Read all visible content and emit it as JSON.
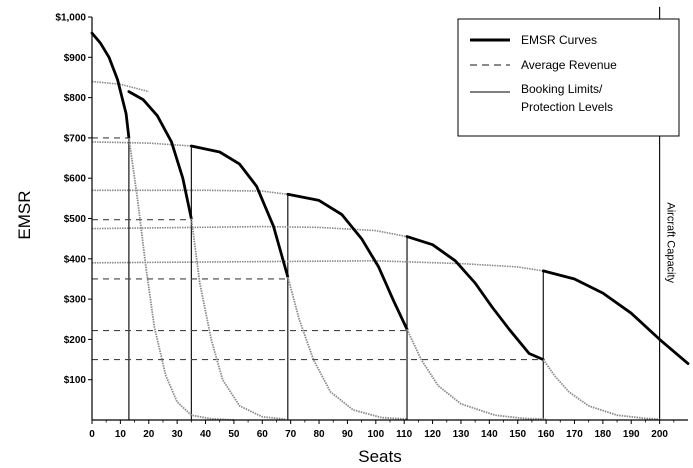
{
  "chart_data": {
    "type": "line",
    "xlabel": "Seats",
    "ylabel": "EMSR",
    "xlim": [
      0,
      210
    ],
    "ylim": [
      0,
      1000
    ],
    "x_ticks": [
      "0",
      "10",
      "20",
      "30",
      "40",
      "50",
      "60",
      "70",
      "80",
      "90",
      "100",
      "110",
      "120",
      "130",
      "140",
      "150",
      "160",
      "170",
      "180",
      "190",
      "200"
    ],
    "y_ticks": [
      {
        "value": 100,
        "label": "$100"
      },
      {
        "value": 200,
        "label": "$200"
      },
      {
        "value": 300,
        "label": "$300"
      },
      {
        "value": 400,
        "label": "$400"
      },
      {
        "value": 500,
        "label": "$500"
      },
      {
        "value": 600,
        "label": "$600"
      },
      {
        "value": 700,
        "label": "$700"
      },
      {
        "value": 800,
        "label": "$800"
      },
      {
        "value": 900,
        "label": "$900"
      },
      {
        "value": 1000,
        "label": "$1,000"
      }
    ],
    "legend": {
      "position": "top-right",
      "entries": [
        {
          "label": "EMSR Curves",
          "style": "thick-solid"
        },
        {
          "label": "Average Revenue",
          "style": "dashed"
        },
        {
          "label": "Booking Limits/",
          "label2": "Protection Levels",
          "style": "thin-solid"
        }
      ]
    },
    "annotation": {
      "text": "Aircraft Capacity",
      "x": 200
    },
    "colors": {
      "emsr": "#000000",
      "continuation": "#8a8a8a",
      "dashed": "#444444",
      "guide": "#000000"
    },
    "emsr_curves": [
      {
        "segments": [
          {
            "style": "solid",
            "points": [
              [
                0,
                960
              ],
              [
                3,
                935
              ],
              [
                6,
                900
              ],
              [
                9,
                845
              ],
              [
                12,
                760
              ],
              [
                13,
                700
              ]
            ]
          },
          {
            "style": "dotted",
            "points": [
              [
                13,
                700
              ],
              [
                16,
                550
              ],
              [
                19,
                380
              ],
              [
                22,
                230
              ],
              [
                26,
                110
              ],
              [
                30,
                45
              ],
              [
                35,
                12
              ],
              [
                42,
                3
              ],
              [
                50,
                0
              ]
            ]
          }
        ]
      },
      {
        "segments": [
          {
            "style": "solid",
            "points": [
              [
                13,
                815
              ],
              [
                18,
                795
              ],
              [
                23,
                755
              ],
              [
                28,
                690
              ],
              [
                32,
                600
              ],
              [
                35,
                500
              ]
            ]
          },
          {
            "style": "dotted",
            "points": [
              [
                35,
                500
              ],
              [
                38,
                340
              ],
              [
                42,
                200
              ],
              [
                46,
                100
              ],
              [
                52,
                35
              ],
              [
                60,
                8
              ],
              [
                68,
                2
              ]
            ]
          }
        ]
      },
      {
        "segments": [
          {
            "style": "solid",
            "points": [
              [
                35,
                680
              ],
              [
                45,
                665
              ],
              [
                52,
                635
              ],
              [
                58,
                580
              ],
              [
                64,
                480
              ],
              [
                69,
                355
              ]
            ]
          },
          {
            "style": "dotted",
            "points": [
              [
                69,
                355
              ],
              [
                73,
                250
              ],
              [
                78,
                150
              ],
              [
                84,
                70
              ],
              [
                92,
                25
              ],
              [
                102,
                6
              ],
              [
                111,
                2
              ]
            ]
          }
        ]
      },
      {
        "segments": [
          {
            "style": "solid",
            "points": [
              [
                69,
                560
              ],
              [
                80,
                545
              ],
              [
                88,
                510
              ],
              [
                95,
                450
              ],
              [
                101,
                380
              ],
              [
                106,
                300
              ],
              [
                111,
                225
              ]
            ]
          },
          {
            "style": "dotted",
            "points": [
              [
                111,
                225
              ],
              [
                116,
                150
              ],
              [
                122,
                85
              ],
              [
                130,
                40
              ],
              [
                142,
                12
              ],
              [
                152,
                4
              ],
              [
                160,
                2
              ]
            ]
          }
        ]
      },
      {
        "segments": [
          {
            "style": "solid",
            "points": [
              [
                111,
                455
              ],
              [
                120,
                435
              ],
              [
                128,
                395
              ],
              [
                135,
                340
              ],
              [
                141,
                280
              ],
              [
                147,
                225
              ],
              [
                154,
                165
              ],
              [
                159,
                150
              ]
            ]
          },
          {
            "style": "dotted",
            "points": [
              [
                159,
                150
              ],
              [
                163,
                110
              ],
              [
                168,
                70
              ],
              [
                175,
                35
              ],
              [
                185,
                12
              ],
              [
                195,
                4
              ],
              [
                200,
                2
              ]
            ]
          }
        ]
      },
      {
        "segments": [
          {
            "style": "solid",
            "points": [
              [
                159,
                370
              ],
              [
                170,
                350
              ],
              [
                180,
                315
              ],
              [
                190,
                265
              ],
              [
                200,
                200
              ],
              [
                210,
                140
              ]
            ]
          }
        ]
      }
    ],
    "continuation_lines": [
      {
        "points": [
          [
            0,
            840
          ],
          [
            10,
            833
          ],
          [
            20,
            815
          ]
        ]
      },
      {
        "points": [
          [
            0,
            690
          ],
          [
            20,
            687
          ],
          [
            35,
            680
          ]
        ]
      },
      {
        "points": [
          [
            0,
            570
          ],
          [
            40,
            570
          ],
          [
            60,
            568
          ],
          [
            69,
            560
          ]
        ]
      },
      {
        "points": [
          [
            0,
            475
          ],
          [
            60,
            480
          ],
          [
            80,
            478
          ],
          [
            100,
            470
          ],
          [
            111,
            455
          ]
        ]
      },
      {
        "points": [
          [
            0,
            390
          ],
          [
            100,
            395
          ],
          [
            130,
            388
          ],
          [
            150,
            380
          ],
          [
            159,
            370
          ]
        ]
      }
    ],
    "average_revenue_lines": [
      {
        "y": 700,
        "x0": 0,
        "x1": 13
      },
      {
        "y": 497,
        "x0": 0,
        "x1": 35
      },
      {
        "y": 350,
        "x0": 0,
        "x1": 69
      },
      {
        "y": 222,
        "x0": 0,
        "x1": 111
      },
      {
        "y": 150,
        "x0": 0,
        "x1": 159
      }
    ],
    "booking_limits": [
      {
        "x": 13,
        "y_top": 700
      },
      {
        "x": 35,
        "y_top": 680
      },
      {
        "x": 69,
        "y_top": 560
      },
      {
        "x": 111,
        "y_top": 455
      },
      {
        "x": 159,
        "y_top": 370
      },
      {
        "x": 200,
        "y_top": 1025
      }
    ]
  }
}
